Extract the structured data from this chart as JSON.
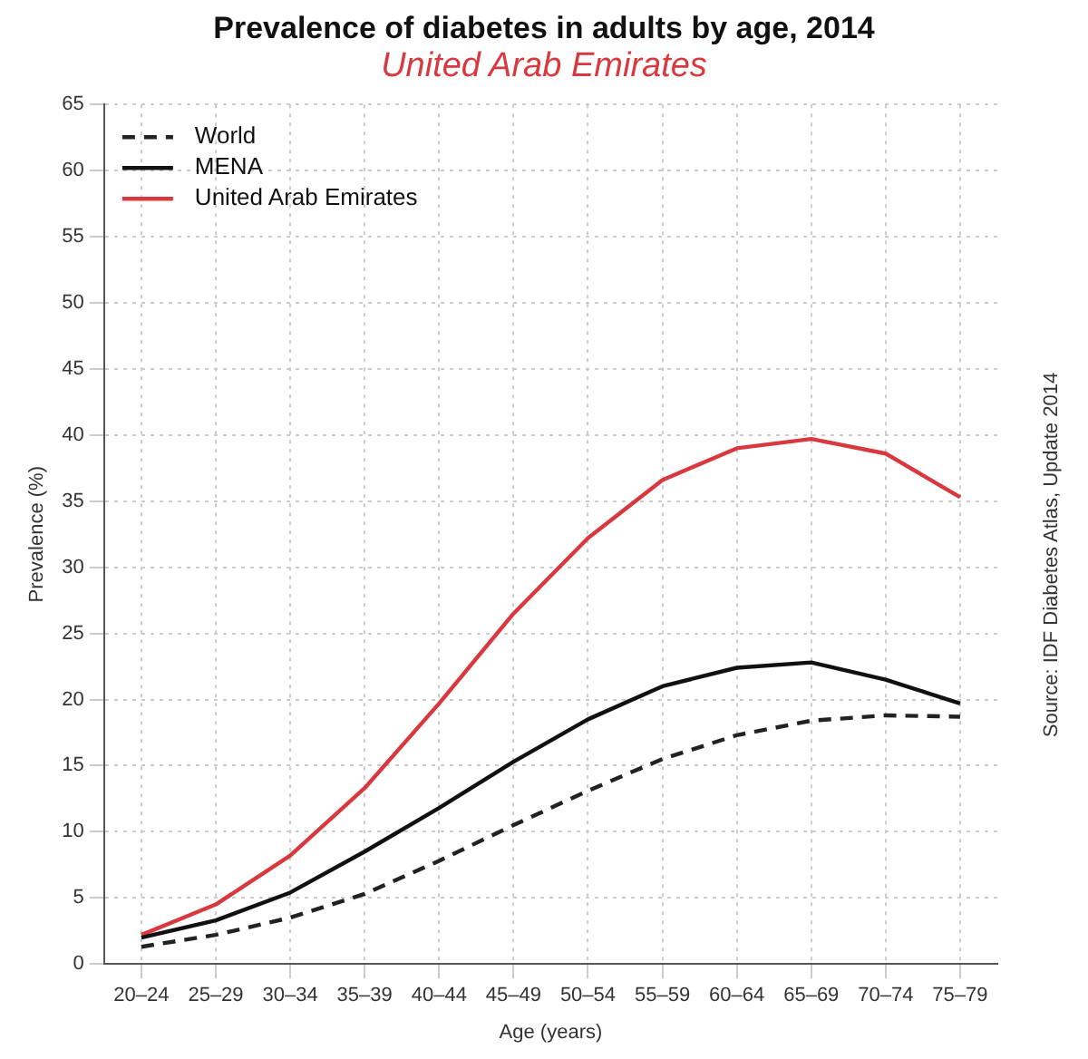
{
  "chart_data": {
    "type": "line",
    "title": "Prevalence of diabetes in adults by age, 2014",
    "subtitle": "United Arab Emirates",
    "xlabel": "Age (years)",
    "ylabel": "Prevalence (%)",
    "annotations": [
      "Source: IDF Diabetes Atlas, Update 2014"
    ],
    "categories": [
      "20–24",
      "25–29",
      "30–34",
      "35–39",
      "40–44",
      "45–49",
      "50–54",
      "55–59",
      "60–64",
      "65–69",
      "70–74",
      "75–79"
    ],
    "series": [
      {
        "name": "World",
        "color": "#222222",
        "line_style": "dashed",
        "values": [
          1.3,
          2.2,
          3.5,
          5.3,
          7.8,
          10.5,
          13.1,
          15.5,
          17.3,
          18.4,
          18.8,
          18.7
        ]
      },
      {
        "name": "MENA",
        "color": "#111111",
        "line_style": "solid",
        "values": [
          2.0,
          3.3,
          5.4,
          8.5,
          11.8,
          15.3,
          18.5,
          21.0,
          22.4,
          22.8,
          21.5,
          19.7
        ]
      },
      {
        "name": "United Arab Emirates",
        "color": "#d9393e",
        "line_style": "solid",
        "values": [
          2.2,
          4.5,
          8.2,
          13.3,
          19.7,
          26.5,
          32.2,
          36.6,
          39.0,
          39.7,
          38.6,
          35.3
        ]
      }
    ],
    "ylim": [
      0,
      65
    ],
    "yticks": [
      0,
      5,
      10,
      15,
      20,
      25,
      30,
      35,
      40,
      45,
      50,
      55,
      60,
      65
    ],
    "grid": true,
    "legend": "top left",
    "marker": "none"
  }
}
